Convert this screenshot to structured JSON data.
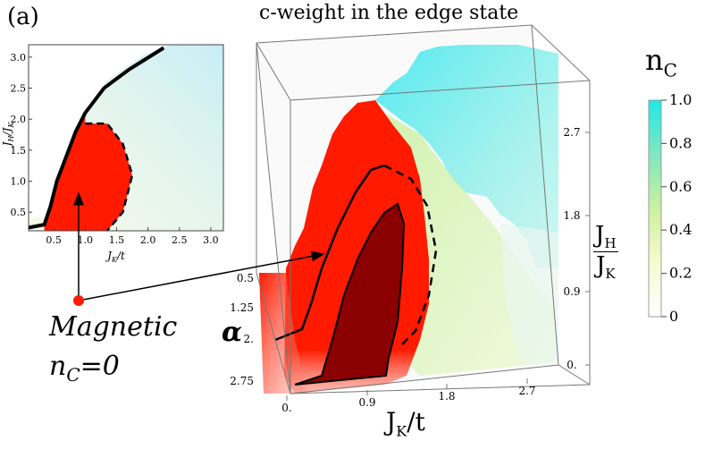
{
  "panel_label": "(a)",
  "chart_data": [
    {
      "type": "area",
      "title": "",
      "xlabel": "J_K/t",
      "ylabel": "J_H/J_K",
      "xlim": [
        0.1,
        3.2
      ],
      "ylim": [
        0.2,
        3.2
      ],
      "x_ticks": [
        "0.5",
        "1.0",
        "1.5",
        "2.0",
        "2.5",
        "3.0"
      ],
      "y_ticks": [
        "0.5",
        "1.0",
        "1.5",
        "2.0",
        "2.5",
        "3.0"
      ],
      "boundary_solid": [
        [
          0.1,
          0.25
        ],
        [
          0.35,
          0.3
        ],
        [
          0.45,
          0.6
        ],
        [
          0.55,
          1.0
        ],
        [
          0.7,
          1.4
        ],
        [
          0.85,
          1.8
        ],
        [
          1.0,
          2.1
        ],
        [
          1.3,
          2.5
        ],
        [
          1.7,
          2.8
        ],
        [
          2.25,
          3.15
        ]
      ],
      "boundary_dashed": [
        [
          1.0,
          1.93
        ],
        [
          1.35,
          1.93
        ],
        [
          1.6,
          1.6
        ],
        [
          1.75,
          1.1
        ],
        [
          1.6,
          0.5
        ],
        [
          1.35,
          0.2
        ]
      ],
      "region_fill": "#ff1a00"
    },
    {
      "type": "heatmap",
      "title": "c-weight in the edge state",
      "xlabel": "J_K/t",
      "ylabel": "J_H/J_K",
      "zlabel": "α",
      "x_ticks": [
        "0.",
        "0.9",
        "1.8",
        "2.7"
      ],
      "y_ticks": [
        "0.",
        "0.9",
        "1.8",
        "2.7"
      ],
      "z_ticks": [
        "0.5",
        "1.25",
        "2.",
        "2.75"
      ],
      "colorbar": {
        "label": "n_C",
        "range": [
          0,
          1.0
        ],
        "ticks": [
          "1.0",
          "0.8",
          "0.6",
          "0.4",
          "0.2",
          "0"
        ],
        "colors": [
          "#ffffff",
          "#f6fbd0",
          "#ccf0a0",
          "#80e8c0",
          "#20e8e8"
        ]
      }
    }
  ],
  "annotation": {
    "line1": "Magnetic",
    "line2_main": "n",
    "line2_sub": "C",
    "line2_rest": "=0"
  },
  "axis_text": {
    "jk_main": "J",
    "jk_sub": "K",
    "jk_rest": "/t",
    "jh_main": "J",
    "jh_sub": "H",
    "jk2_main": "J",
    "jk2_sub": "K",
    "alpha": "α",
    "nc_main": "n",
    "nc_sub": "C"
  }
}
